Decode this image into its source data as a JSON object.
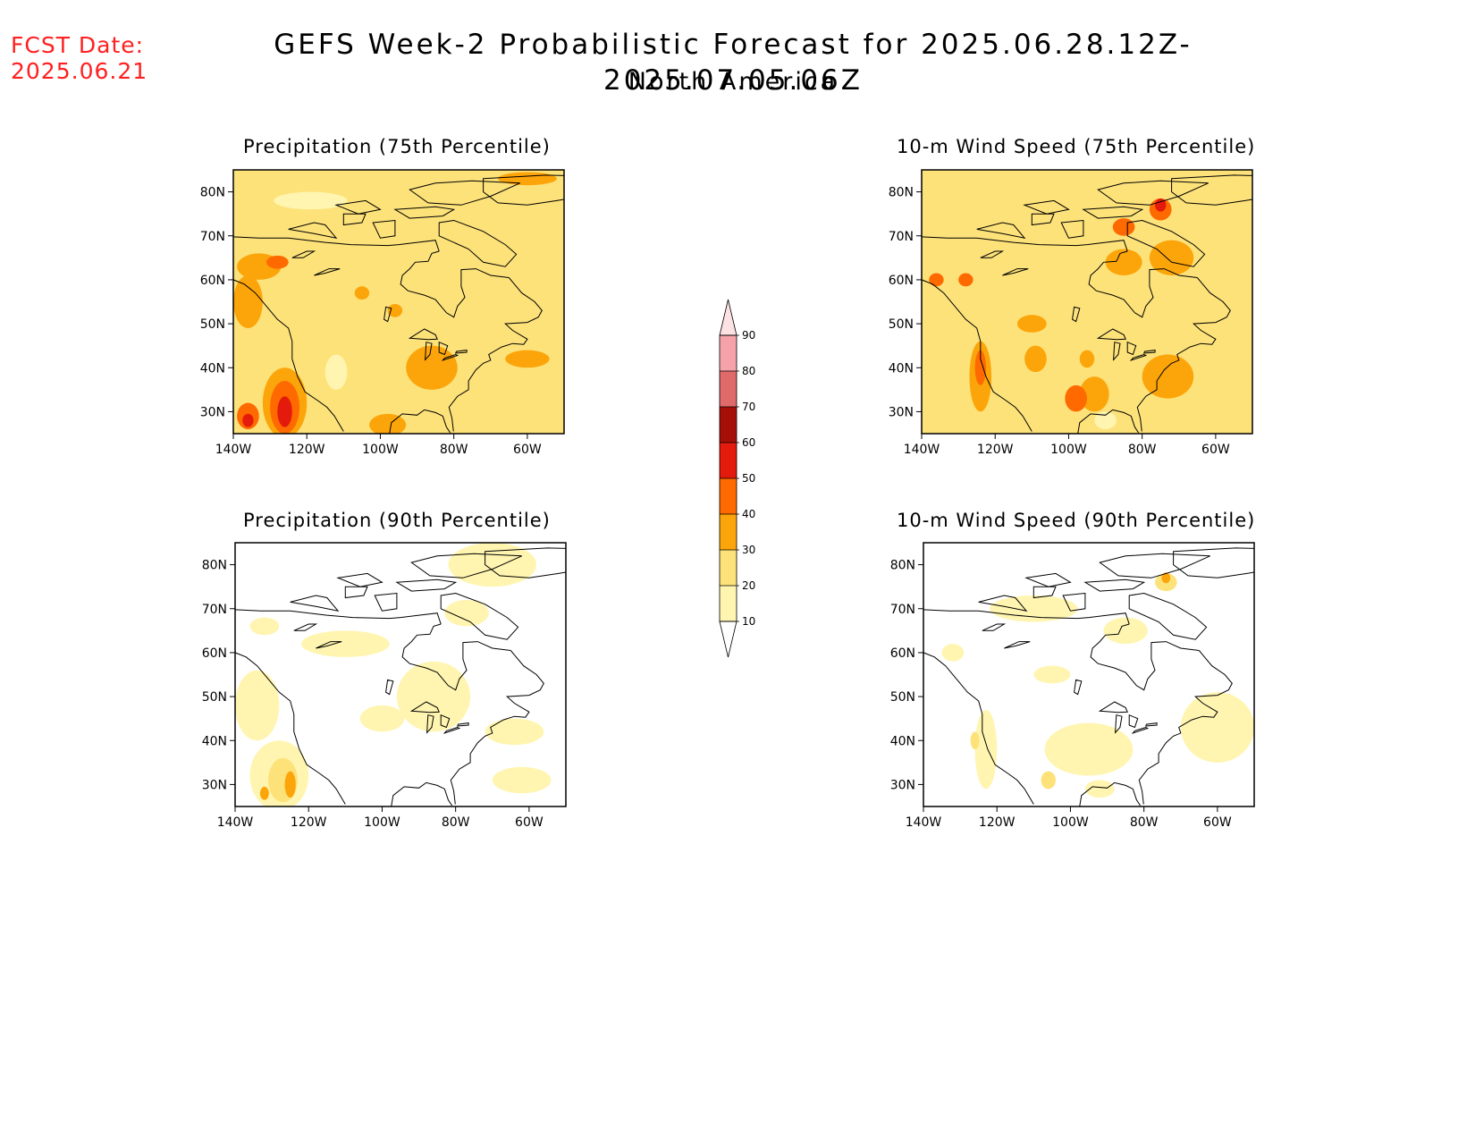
{
  "header": {
    "fcst_label": "FCST Date:",
    "fcst_date": "2025.06.21",
    "title": "GEFS Week-2 Probabilistic Forecast for 2025.06.28.12Z-2025.07.05.06Z",
    "subtitle": "North America"
  },
  "colors": {
    "c10": "#fff5b0",
    "c20": "#fde27a",
    "c30": "#fca50a",
    "c40": "#fe6a00",
    "c50": "#e41a0c",
    "c60": "#a50f08",
    "c70": "#e06a6a",
    "c80": "#f5a3a8",
    "c90": "#fde2e4",
    "coast": "#000000",
    "fcst_date_color": "#ff2020"
  },
  "colorbar": {
    "levels": [
      10,
      20,
      30,
      40,
      50,
      60,
      70,
      80,
      90
    ],
    "labels": [
      "10",
      "20",
      "30",
      "40",
      "50",
      "60",
      "70",
      "80",
      "90"
    ]
  },
  "axes": {
    "lon_labels": [
      "140W",
      "120W",
      "100W",
      "80W",
      "60W"
    ],
    "lat_labels": [
      "30N",
      "40N",
      "50N",
      "60N",
      "70N",
      "80N"
    ],
    "lon_range": [
      -140,
      -50
    ],
    "lat_range": [
      25,
      85
    ]
  },
  "panels": [
    {
      "id": "precip75",
      "title": "Precipitation (75th Percentile)",
      "background_level": 20,
      "patches": [
        {
          "lon": -133,
          "lat": 63,
          "rlon": 6,
          "rlat": 3,
          "level": 30
        },
        {
          "lon": -128,
          "lat": 64,
          "rlon": 3,
          "rlat": 1.5,
          "level": 40
        },
        {
          "lon": -136,
          "lat": 55,
          "rlon": 4,
          "rlat": 6,
          "level": 30
        },
        {
          "lon": -126,
          "lat": 32,
          "rlon": 6,
          "rlat": 8,
          "level": 30
        },
        {
          "lon": -126,
          "lat": 31,
          "rlon": 4,
          "rlat": 6,
          "level": 40
        },
        {
          "lon": -126,
          "lat": 30,
          "rlon": 2,
          "rlat": 3.5,
          "level": 50
        },
        {
          "lon": -136,
          "lat": 29,
          "rlon": 3,
          "rlat": 3,
          "level": 40
        },
        {
          "lon": -136,
          "lat": 28,
          "rlon": 1.5,
          "rlat": 1.5,
          "level": 50
        },
        {
          "lon": -86,
          "lat": 40,
          "rlon": 7,
          "rlat": 5,
          "level": 30
        },
        {
          "lon": -98,
          "lat": 27,
          "rlon": 5,
          "rlat": 2.5,
          "level": 30
        },
        {
          "lon": -112,
          "lat": 39,
          "rlon": 3,
          "rlat": 4,
          "level": 10
        },
        {
          "lon": -119,
          "lat": 78,
          "rlon": 10,
          "rlat": 2,
          "level": 10
        },
        {
          "lon": -60,
          "lat": 83,
          "rlon": 8,
          "rlat": 1.5,
          "level": 30
        },
        {
          "lon": -60,
          "lat": 42,
          "rlon": 6,
          "rlat": 2,
          "level": 30
        },
        {
          "lon": -96,
          "lat": 53,
          "rlon": 2,
          "rlat": 1.5,
          "level": 30
        },
        {
          "lon": -105,
          "lat": 57,
          "rlon": 2,
          "rlat": 1.5,
          "level": 30
        }
      ]
    },
    {
      "id": "wind75",
      "title": "10-m Wind Speed (75th Percentile)",
      "background_level": 20,
      "patches": [
        {
          "lon": -124,
          "lat": 38,
          "rlon": 3,
          "rlat": 8,
          "level": 30
        },
        {
          "lon": -124,
          "lat": 40,
          "rlon": 1.5,
          "rlat": 4,
          "level": 40
        },
        {
          "lon": -93,
          "lat": 34,
          "rlon": 4,
          "rlat": 4,
          "level": 30
        },
        {
          "lon": -73,
          "lat": 38,
          "rlon": 7,
          "rlat": 5,
          "level": 30
        },
        {
          "lon": -75,
          "lat": 76,
          "rlon": 3,
          "rlat": 2.5,
          "level": 40
        },
        {
          "lon": -75,
          "lat": 77,
          "rlon": 1.5,
          "rlat": 1.5,
          "level": 50
        },
        {
          "lon": -85,
          "lat": 72,
          "rlon": 3,
          "rlat": 2,
          "level": 40
        },
        {
          "lon": -72,
          "lat": 65,
          "rlon": 6,
          "rlat": 4,
          "level": 30
        },
        {
          "lon": -85,
          "lat": 64,
          "rlon": 5,
          "rlat": 3,
          "level": 30
        },
        {
          "lon": -136,
          "lat": 60,
          "rlon": 2,
          "rlat": 1.5,
          "level": 40
        },
        {
          "lon": -128,
          "lat": 60,
          "rlon": 2,
          "rlat": 1.5,
          "level": 40
        },
        {
          "lon": -109,
          "lat": 42,
          "rlon": 3,
          "rlat": 3,
          "level": 30
        },
        {
          "lon": -95,
          "lat": 42,
          "rlon": 2,
          "rlat": 2,
          "level": 30
        },
        {
          "lon": -110,
          "lat": 50,
          "rlon": 4,
          "rlat": 2,
          "level": 30
        },
        {
          "lon": -90,
          "lat": 28,
          "rlon": 3,
          "rlat": 2,
          "level": 10
        },
        {
          "lon": -98,
          "lat": 33,
          "rlon": 3,
          "rlat": 3,
          "level": 40
        }
      ]
    },
    {
      "id": "precip90",
      "title": "Precipitation (90th Percentile)",
      "background_level": 0,
      "patches": [
        {
          "lon": -86,
          "lat": 50,
          "rlon": 10,
          "rlat": 8,
          "level": 10
        },
        {
          "lon": -134,
          "lat": 48,
          "rlon": 6,
          "rlat": 8,
          "level": 10
        },
        {
          "lon": -128,
          "lat": 32,
          "rlon": 8,
          "rlat": 8,
          "level": 10
        },
        {
          "lon": -127,
          "lat": 31,
          "rlon": 4,
          "rlat": 5,
          "level": 20
        },
        {
          "lon": -125,
          "lat": 30,
          "rlon": 1.5,
          "rlat": 3,
          "level": 30
        },
        {
          "lon": -132,
          "lat": 28,
          "rlon": 1.2,
          "rlat": 1.5,
          "level": 30
        },
        {
          "lon": -110,
          "lat": 62,
          "rlon": 12,
          "rlat": 3,
          "level": 10
        },
        {
          "lon": -70,
          "lat": 80,
          "rlon": 12,
          "rlat": 5,
          "level": 10
        },
        {
          "lon": -64,
          "lat": 42,
          "rlon": 8,
          "rlat": 3,
          "level": 10
        },
        {
          "lon": -100,
          "lat": 45,
          "rlon": 6,
          "rlat": 3,
          "level": 10
        },
        {
          "lon": -62,
          "lat": 31,
          "rlon": 8,
          "rlat": 3,
          "level": 10
        },
        {
          "lon": -132,
          "lat": 66,
          "rlon": 4,
          "rlat": 2,
          "level": 10
        },
        {
          "lon": -77,
          "lat": 69,
          "rlon": 6,
          "rlat": 3,
          "level": 10
        }
      ]
    },
    {
      "id": "wind90",
      "title": "10-m Wind Speed (90th Percentile)",
      "background_level": 0,
      "patches": [
        {
          "lon": -74,
          "lat": 76,
          "rlon": 3,
          "rlat": 2,
          "level": 20
        },
        {
          "lon": -74,
          "lat": 77,
          "rlon": 1.2,
          "rlat": 1.2,
          "level": 30
        },
        {
          "lon": -60,
          "lat": 43,
          "rlon": 10,
          "rlat": 8,
          "level": 10
        },
        {
          "lon": -95,
          "lat": 38,
          "rlon": 12,
          "rlat": 6,
          "level": 10
        },
        {
          "lon": -123,
          "lat": 38,
          "rlon": 3,
          "rlat": 9,
          "level": 10
        },
        {
          "lon": -126,
          "lat": 40,
          "rlon": 1.2,
          "rlat": 2,
          "level": 20
        },
        {
          "lon": -110,
          "lat": 70,
          "rlon": 12,
          "rlat": 3,
          "level": 10
        },
        {
          "lon": -85,
          "lat": 65,
          "rlon": 6,
          "rlat": 3,
          "level": 10
        },
        {
          "lon": -132,
          "lat": 60,
          "rlon": 3,
          "rlat": 2,
          "level": 10
        },
        {
          "lon": -105,
          "lat": 55,
          "rlon": 5,
          "rlat": 2,
          "level": 10
        },
        {
          "lon": -92,
          "lat": 29,
          "rlon": 4,
          "rlat": 2,
          "level": 10
        },
        {
          "lon": -106,
          "lat": 31,
          "rlon": 2,
          "rlat": 2,
          "level": 20
        }
      ]
    }
  ]
}
